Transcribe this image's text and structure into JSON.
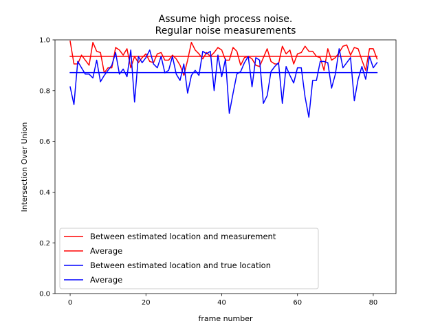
{
  "chart_data": {
    "type": "line",
    "title": "Assume high process noise.",
    "subtitle": "Regular noise measurements",
    "xlabel": "frame number",
    "ylabel": "Intersection Over Union",
    "xlim": [
      -4,
      86
    ],
    "ylim": [
      0.0,
      1.0
    ],
    "xticks": [
      0,
      20,
      40,
      60,
      80
    ],
    "yticks": [
      0.0,
      0.2,
      0.4,
      0.6,
      0.8,
      1.0
    ],
    "xtick_labels": [
      "0",
      "20",
      "40",
      "60",
      "80"
    ],
    "ytick_labels": [
      "0.0",
      "0.2",
      "0.4",
      "0.6",
      "0.8",
      "1.0"
    ],
    "grid": false,
    "legend_position": "lower-left",
    "series": [
      {
        "name": "Between estimated location and measurement",
        "color": "#ff0000",
        "x": [
          0,
          1,
          2,
          3,
          4,
          5,
          6,
          7,
          8,
          9,
          10,
          11,
          12,
          13,
          14,
          15,
          16,
          17,
          18,
          19,
          20,
          21,
          22,
          23,
          24,
          25,
          26,
          27,
          28,
          29,
          30,
          31,
          32,
          33,
          34,
          35,
          36,
          37,
          38,
          39,
          40,
          41,
          42,
          43,
          44,
          45,
          46,
          47,
          48,
          49,
          50,
          51,
          52,
          53,
          54,
          55,
          56,
          57,
          58,
          59,
          60,
          61,
          62,
          63,
          64,
          65,
          66,
          67,
          68,
          69,
          70,
          71,
          72,
          73,
          74,
          75,
          76,
          77,
          78,
          79,
          80,
          81
        ],
        "y": [
          0.995,
          0.905,
          0.905,
          0.94,
          0.92,
          0.9,
          0.99,
          0.955,
          0.95,
          0.87,
          0.89,
          0.89,
          0.97,
          0.96,
          0.94,
          0.965,
          0.89,
          0.935,
          0.91,
          0.93,
          0.945,
          0.915,
          0.91,
          0.945,
          0.95,
          0.92,
          0.92,
          0.94,
          0.925,
          0.9,
          0.86,
          0.92,
          0.99,
          0.96,
          0.945,
          0.925,
          0.95,
          0.935,
          0.95,
          0.97,
          0.96,
          0.92,
          0.92,
          0.97,
          0.955,
          0.9,
          0.93,
          0.935,
          0.925,
          0.9,
          0.895,
          0.93,
          0.965,
          0.915,
          0.905,
          0.905,
          0.975,
          0.945,
          0.96,
          0.905,
          0.945,
          0.95,
          0.975,
          0.955,
          0.955,
          0.935,
          0.93,
          0.88,
          0.965,
          0.92,
          0.93,
          0.95,
          0.975,
          0.98,
          0.94,
          0.97,
          0.965,
          0.92,
          0.88,
          0.965,
          0.965,
          0.925
        ]
      },
      {
        "name": "Average",
        "color": "#ff0000",
        "x": [
          0,
          81
        ],
        "y": [
          0.935,
          0.935
        ]
      },
      {
        "name": "Between estimated location and true location",
        "color": "#0000ff",
        "x": [
          0,
          1,
          2,
          3,
          4,
          5,
          6,
          7,
          8,
          9,
          10,
          11,
          12,
          13,
          14,
          15,
          16,
          17,
          18,
          19,
          20,
          21,
          22,
          23,
          24,
          25,
          26,
          27,
          28,
          29,
          30,
          31,
          32,
          33,
          34,
          35,
          36,
          37,
          38,
          39,
          40,
          41,
          42,
          43,
          44,
          45,
          46,
          47,
          48,
          49,
          50,
          51,
          52,
          53,
          54,
          55,
          56,
          57,
          58,
          59,
          60,
          61,
          62,
          63,
          64,
          65,
          66,
          67,
          68,
          69,
          70,
          71,
          72,
          73,
          74,
          75,
          76,
          77,
          78,
          79,
          80,
          81
        ],
        "y": [
          0.815,
          0.745,
          0.915,
          0.89,
          0.865,
          0.865,
          0.85,
          0.92,
          0.835,
          0.86,
          0.88,
          0.9,
          0.95,
          0.865,
          0.885,
          0.855,
          0.96,
          0.755,
          0.935,
          0.91,
          0.93,
          0.96,
          0.905,
          0.89,
          0.935,
          0.87,
          0.88,
          0.935,
          0.865,
          0.84,
          0.905,
          0.79,
          0.86,
          0.88,
          0.86,
          0.955,
          0.945,
          0.955,
          0.8,
          0.94,
          0.855,
          0.925,
          0.71,
          0.79,
          0.865,
          0.875,
          0.91,
          0.935,
          0.815,
          0.93,
          0.92,
          0.75,
          0.78,
          0.875,
          0.895,
          0.91,
          0.75,
          0.895,
          0.86,
          0.83,
          0.89,
          0.89,
          0.775,
          0.695,
          0.84,
          0.84,
          0.915,
          0.915,
          0.91,
          0.81,
          0.865,
          0.965,
          0.89,
          0.91,
          0.93,
          0.76,
          0.845,
          0.895,
          0.845,
          0.935,
          0.89,
          0.91
        ]
      },
      {
        "name": "Average",
        "color": "#0000ff",
        "x": [
          0,
          81
        ],
        "y": [
          0.871,
          0.871
        ]
      }
    ]
  }
}
